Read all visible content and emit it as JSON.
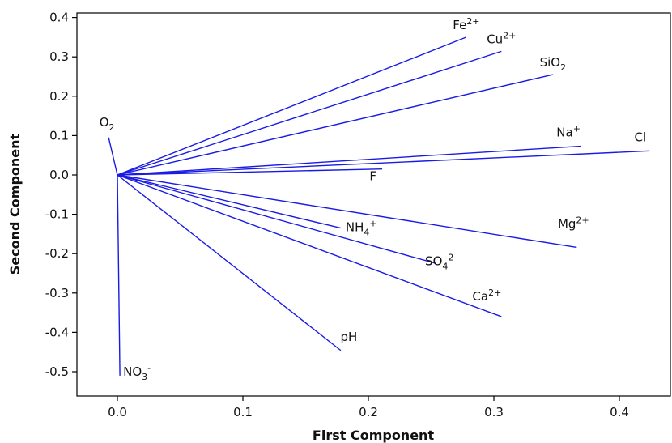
{
  "chart_data": {
    "type": "loading plot",
    "xlabel": "First Component",
    "ylabel": "Second Component",
    "xlim": [
      -0.03,
      0.44
    ],
    "ylim": [
      -0.58,
      0.42
    ],
    "xticks": [
      "0.0",
      "0.1",
      "0.2",
      "0.3",
      "0.4"
    ],
    "xtick_values": [
      0.0,
      0.1,
      0.2,
      0.3,
      0.4
    ],
    "yticks": [
      "0.4",
      "0.3",
      "0.2",
      "0.1",
      "0.0",
      "-0.1",
      "-0.2",
      "-0.3",
      "-0.4",
      "-0.5"
    ],
    "ytick_values": [
      0.4,
      0.3,
      0.2,
      0.1,
      0.0,
      -0.1,
      -0.2,
      -0.3,
      -0.4,
      -0.5
    ],
    "grid": false,
    "line_color": "#1a1ae6",
    "origin": [
      0.0,
      0.0
    ],
    "vectors": [
      {
        "label": "Fe",
        "sup": "2+",
        "sub": "",
        "x": 0.278,
        "y": 0.35
      },
      {
        "label": "Cu",
        "sup": "2+",
        "sub": "",
        "x": 0.306,
        "y": 0.314
      },
      {
        "label": "SiO",
        "sup": "",
        "sub": "2",
        "x": 0.347,
        "y": 0.255
      },
      {
        "label": "Na",
        "sup": "+",
        "sub": "",
        "x": 0.369,
        "y": 0.073
      },
      {
        "label": "Cl",
        "sup": "-",
        "sub": "",
        "x": 0.424,
        "y": 0.061
      },
      {
        "label": "F",
        "sup": "-",
        "sub": "",
        "x": 0.211,
        "y": 0.015
      },
      {
        "label": "O",
        "sup": "",
        "sub": "2",
        "x": -0.007,
        "y": 0.095
      },
      {
        "label": "NH",
        "sup": "+",
        "sub": "4",
        "x": 0.178,
        "y": -0.135
      },
      {
        "label": "SO",
        "sup": "2-",
        "sub": "4",
        "x": 0.254,
        "y": -0.225
      },
      {
        "label": "Mg",
        "sup": "2+",
        "sub": "",
        "x": 0.366,
        "y": -0.184
      },
      {
        "label": "Ca",
        "sup": "2+",
        "sub": "",
        "x": 0.306,
        "y": -0.36
      },
      {
        "label": "pH",
        "sup": "",
        "sub": "",
        "x": 0.178,
        "y": -0.446
      },
      {
        "label": "NO",
        "sup": "-",
        "sub": "3",
        "x": 0.002,
        "y": -0.51
      }
    ]
  }
}
